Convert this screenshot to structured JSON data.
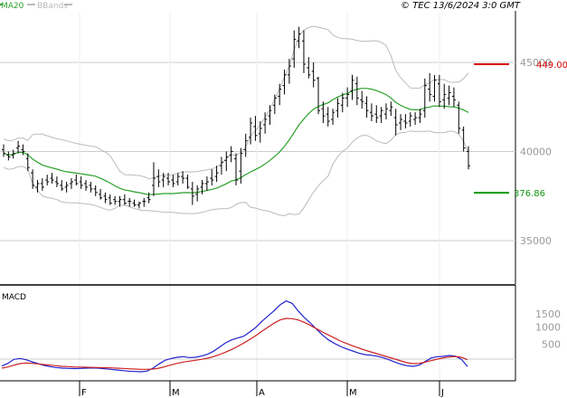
{
  "copyright": "© TEC 13/6/2024 3:0 GMT",
  "legend": {
    "ma": {
      "label": "MA20",
      "color": "#2aa02a"
    },
    "bb": {
      "label": "BBands",
      "color": "#bbbbbb"
    }
  },
  "macd_label": "MACD",
  "price_axis_labels": [
    "35000",
    "40000",
    "45000"
  ],
  "macd_axis_labels": [
    "1500",
    "1000",
    "500"
  ],
  "month_labels": [
    "F",
    "M",
    "A",
    "M",
    "J"
  ],
  "resistance": {
    "label": "449.00",
    "value": 449.0,
    "color": "#dd0000"
  },
  "support": {
    "label": "376.86",
    "value": 376.86,
    "color": "#119911"
  },
  "chart_data": [
    {
      "type": "ohlc",
      "title": "",
      "x_labels": [
        "F",
        "M",
        "A",
        "M",
        "J"
      ],
      "ylim": [
        325,
        472
      ],
      "y_ticks": [
        350,
        400,
        450
      ],
      "bars": [
        [
          401,
          404,
          397,
          399
        ],
        [
          398,
          400,
          395,
          397
        ],
        [
          398,
          401,
          396,
          399
        ],
        [
          402,
          406,
          399,
          403
        ],
        [
          401,
          404,
          398,
          400
        ],
        [
          396,
          399,
          389,
          391
        ],
        [
          388,
          390,
          379,
          381
        ],
        [
          380,
          384,
          377,
          382
        ],
        [
          382,
          385,
          378,
          380
        ],
        [
          384,
          387,
          381,
          383
        ],
        [
          385,
          388,
          382,
          384
        ],
        [
          383,
          386,
          380,
          382
        ],
        [
          381,
          384,
          378,
          379
        ],
        [
          380,
          383,
          377,
          381
        ],
        [
          382,
          385,
          379,
          383
        ],
        [
          384,
          387,
          381,
          382
        ],
        [
          383,
          386,
          379,
          381
        ],
        [
          382,
          384,
          378,
          380
        ],
        [
          381,
          383,
          377,
          379
        ],
        [
          379,
          381,
          375,
          377
        ],
        [
          376,
          379,
          373,
          374
        ],
        [
          375,
          377,
          371,
          373
        ],
        [
          374,
          376,
          370,
          371
        ],
        [
          373,
          375,
          370,
          372
        ],
        [
          372,
          375,
          369,
          373
        ],
        [
          373,
          376,
          370,
          371
        ],
        [
          372,
          374,
          369,
          372
        ],
        [
          371,
          373,
          369,
          370
        ],
        [
          370,
          372,
          368,
          371
        ],
        [
          372,
          374,
          369,
          372
        ],
        [
          374,
          377,
          371,
          373
        ],
        [
          381,
          394,
          375,
          385
        ],
        [
          386,
          390,
          380,
          383
        ],
        [
          384,
          388,
          380,
          386
        ],
        [
          385,
          388,
          381,
          383
        ],
        [
          384,
          387,
          380,
          382
        ],
        [
          383,
          388,
          381,
          386
        ],
        [
          386,
          389,
          382,
          385
        ],
        [
          385,
          387,
          379,
          380
        ],
        [
          379,
          383,
          370,
          375
        ],
        [
          376,
          381,
          372,
          379
        ],
        [
          380,
          384,
          376,
          382
        ],
        [
          382,
          386,
          378,
          383
        ],
        [
          385,
          390,
          381,
          384
        ],
        [
          386,
          392,
          383,
          388
        ],
        [
          392,
          397,
          387,
          394
        ],
        [
          395,
          400,
          389,
          397
        ],
        [
          398,
          403,
          394,
          400
        ],
        [
          396,
          399,
          381,
          384
        ],
        [
          389,
          402,
          382,
          399
        ],
        [
          401,
          410,
          397,
          406
        ],
        [
          408,
          419,
          404,
          416
        ],
        [
          414,
          420,
          406,
          409
        ],
        [
          410,
          417,
          405,
          413
        ],
        [
          415,
          422,
          410,
          418
        ],
        [
          420,
          426,
          415,
          423
        ],
        [
          426,
          432,
          421,
          430
        ],
        [
          431,
          438,
          426,
          435
        ],
        [
          437,
          446,
          432,
          443
        ],
        [
          443,
          452,
          438,
          448
        ],
        [
          452,
          468,
          447,
          463
        ],
        [
          462,
          470,
          458,
          466
        ],
        [
          462,
          468,
          444,
          449
        ],
        [
          447,
          453,
          441,
          443
        ],
        [
          445,
          450,
          436,
          440
        ],
        [
          441,
          442,
          421,
          423
        ],
        [
          424,
          428,
          416,
          420
        ],
        [
          421,
          425,
          414,
          417
        ],
        [
          418,
          424,
          415,
          422
        ],
        [
          423,
          430,
          419,
          427
        ],
        [
          426,
          433,
          422,
          430
        ],
        [
          430,
          436,
          425,
          432
        ],
        [
          434,
          443,
          429,
          440
        ],
        [
          438,
          442,
          426,
          430
        ],
        [
          429,
          434,
          424,
          428
        ],
        [
          427,
          431,
          419,
          423
        ],
        [
          422,
          427,
          417,
          420
        ],
        [
          421,
          426,
          416,
          419
        ],
        [
          420,
          425,
          416,
          423
        ],
        [
          421,
          427,
          418,
          424
        ],
        [
          423,
          428,
          420,
          425
        ],
        [
          419,
          424,
          409,
          415
        ],
        [
          416,
          421,
          412,
          418
        ],
        [
          417,
          421,
          413,
          416
        ],
        [
          417,
          422,
          414,
          420
        ],
        [
          418,
          422,
          415,
          419
        ],
        [
          419,
          424,
          416,
          421
        ],
        [
          423,
          441,
          419,
          437
        ],
        [
          435,
          444,
          428,
          432
        ],
        [
          431,
          443,
          428,
          440
        ],
        [
          438,
          443,
          425,
          428
        ],
        [
          429,
          438,
          424,
          432
        ],
        [
          430,
          437,
          426,
          433
        ],
        [
          431,
          436,
          425,
          429
        ],
        [
          426,
          428,
          410,
          413
        ],
        [
          412,
          414,
          400,
          402
        ],
        [
          400,
          403,
          390,
          392
        ]
      ]
    },
    {
      "type": "line",
      "title": "MACD",
      "x_labels": [
        "F",
        "M",
        "A",
        "M",
        "J"
      ],
      "ylim": [
        -900,
        2350
      ],
      "y_ticks": [
        500,
        1000,
        1500
      ],
      "series": [
        {
          "color": "#2222cc",
          "values": [
            -230,
            -140,
            -10,
            20,
            -20,
            -90,
            -150,
            -210,
            -250,
            -280,
            -300,
            -310,
            -315,
            -310,
            -300,
            -295,
            -300,
            -320,
            -340,
            -360,
            -380,
            -400,
            -410,
            -420,
            -400,
            -300,
            -160,
            -40,
            20,
            60,
            80,
            50,
            60,
            100,
            160,
            260,
            400,
            540,
            640,
            700,
            760,
            900,
            1050,
            1250,
            1430,
            1600,
            1800,
            1930,
            1850,
            1600,
            1380,
            1200,
            1000,
            800,
            640,
            520,
            420,
            340,
            270,
            200,
            150,
            130,
            100,
            50,
            -20,
            -100,
            -170,
            -220,
            -240,
            -200,
            -80,
            40,
            80,
            90,
            120,
            100,
            -10,
            -250
          ]
        },
        {
          "color": "#cc2222",
          "values": [
            -300,
            -260,
            -200,
            -150,
            -130,
            -140,
            -160,
            -180,
            -200,
            -220,
            -240,
            -250,
            -260,
            -265,
            -270,
            -275,
            -280,
            -285,
            -290,
            -300,
            -310,
            -320,
            -330,
            -340,
            -340,
            -330,
            -300,
            -250,
            -190,
            -140,
            -100,
            -70,
            -40,
            -10,
            30,
            80,
            150,
            230,
            320,
            420,
            530,
            650,
            780,
            920,
            1060,
            1190,
            1300,
            1350,
            1340,
            1300,
            1220,
            1120,
            1010,
            900,
            800,
            700,
            600,
            520,
            440,
            370,
            300,
            240,
            180,
            120,
            60,
            0,
            -60,
            -120,
            -150,
            -140,
            -100,
            -50,
            0,
            40,
            70,
            90,
            60,
            -20
          ]
        }
      ]
    }
  ]
}
